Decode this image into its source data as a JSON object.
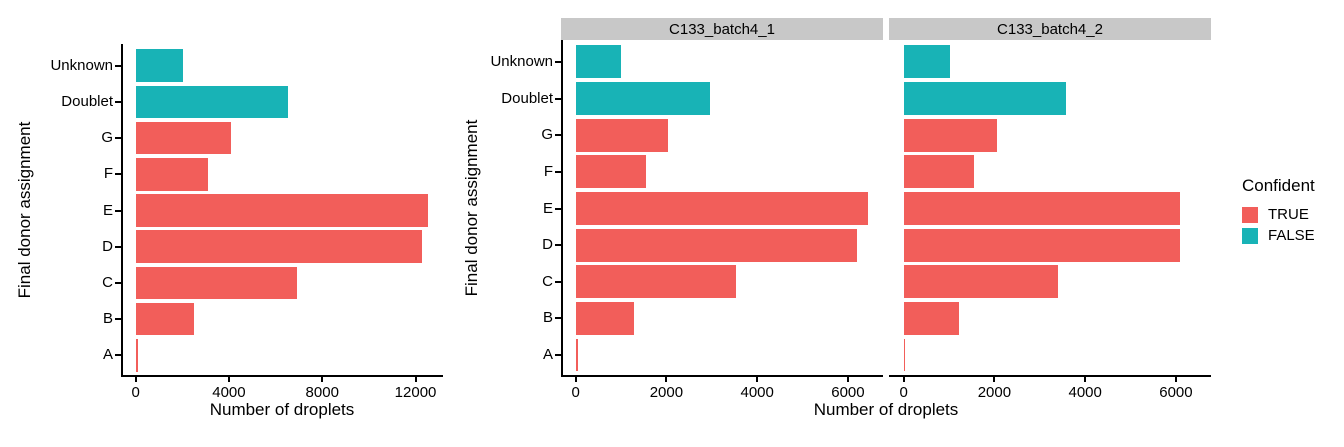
{
  "axes": {
    "x_title": "Number of droplets",
    "y_title": "Final donor assignment"
  },
  "colors": {
    "confident_true": "#F25E5A",
    "confident_false": "#18B3B6",
    "strip_background": "#C8C8C8",
    "axis_line": "#000000",
    "text": "#000000",
    "background": "#FFFFFF"
  },
  "legend": {
    "title": "Confident",
    "position": "right",
    "items": [
      {
        "label": "TRUE",
        "color_key": "confident_true"
      },
      {
        "label": "FALSE",
        "color_key": "confident_false"
      }
    ]
  },
  "chart_data": [
    {
      "type": "bar",
      "orientation": "horizontal",
      "panel": "combined",
      "xlabel": "Number of droplets",
      "ylabel": "Final donor assignment",
      "categories": [
        "Unknown",
        "Doublet",
        "G",
        "F",
        "E",
        "D",
        "C",
        "B",
        "A"
      ],
      "values": [
        2040,
        6530,
        4090,
        3090,
        12550,
        12290,
        6940,
        2510,
        90
      ],
      "confident": [
        false,
        false,
        true,
        true,
        true,
        true,
        true,
        true,
        true
      ],
      "xticks": [
        0,
        4000,
        8000,
        12000
      ],
      "xlim": [
        0,
        12550
      ],
      "grid": false
    },
    {
      "type": "bar",
      "orientation": "horizontal",
      "facet": "C133_batch4_1",
      "xlabel": "Number of droplets",
      "ylabel": "Final donor assignment",
      "categories": [
        "Unknown",
        "Doublet",
        "G",
        "F",
        "E",
        "D",
        "C",
        "B",
        "A"
      ],
      "values": [
        1000,
        2950,
        2040,
        1550,
        6450,
        6200,
        3530,
        1290,
        50
      ],
      "confident": [
        false,
        false,
        true,
        true,
        true,
        true,
        true,
        true,
        true
      ],
      "xticks": [
        0,
        2000,
        4000,
        6000
      ],
      "xlim": [
        0,
        6450
      ],
      "grid": false
    },
    {
      "type": "bar",
      "orientation": "horizontal",
      "facet": "C133_batch4_2",
      "xlabel": "Number of droplets",
      "ylabel": "Final donor assignment",
      "categories": [
        "Unknown",
        "Doublet",
        "G",
        "F",
        "E",
        "D",
        "C",
        "B",
        "A"
      ],
      "values": [
        1030,
        3580,
        2050,
        1540,
        6100,
        6090,
        3410,
        1220,
        40
      ],
      "confident": [
        false,
        false,
        true,
        true,
        true,
        true,
        true,
        true,
        true
      ],
      "xticks": [
        0,
        2000,
        4000,
        6000
      ],
      "xlim": [
        0,
        6450
      ],
      "grid": false
    }
  ]
}
